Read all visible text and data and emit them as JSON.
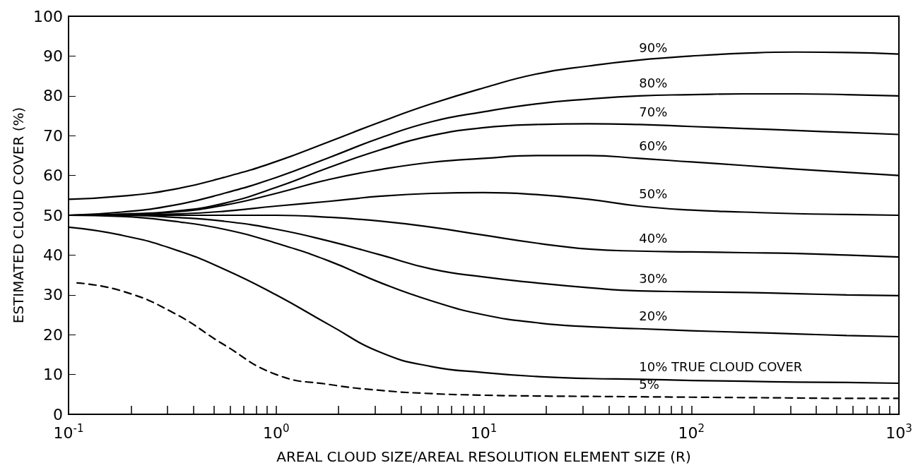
{
  "chart_data": {
    "type": "line",
    "xlabel": "AREAL CLOUD SIZE/AREAL RESOLUTION ELEMENT SIZE (R)",
    "ylabel": "ESTIMATED CLOUD COVER (%)",
    "log": "x",
    "grid": false,
    "legend": false,
    "marker": "none",
    "x": [
      0.1,
      0.18,
      0.32,
      0.56,
      1,
      1.8,
      3.2,
      5.6,
      10,
      18,
      32,
      56,
      100,
      180,
      320,
      560,
      1000
    ],
    "series": [
      {
        "name": "90%",
        "color": "#000000",
        "values": [
          54,
          54.8,
          56.5,
          59.5,
          63.5,
          68.5,
          73.5,
          78,
          82,
          85.5,
          87.5,
          89,
          90,
          90.7,
          91,
          90.9,
          90.5
        ]
      },
      {
        "name": "80%",
        "color": "#000000",
        "values": [
          50,
          50.8,
          52.5,
          55.5,
          59.5,
          64.5,
          69.5,
          73.5,
          76,
          78,
          79.2,
          80,
          80.3,
          80.5,
          80.5,
          80.3,
          80
        ]
      },
      {
        "name": "70%",
        "color": "#000000",
        "values": [
          50,
          50.3,
          51,
          53,
          57,
          62,
          66.5,
          70,
          72,
          72.8,
          73,
          72.8,
          72.3,
          71.8,
          71.3,
          70.8,
          70.3
        ]
      },
      {
        "name": "60%",
        "color": "#000000",
        "values": [
          50,
          50.2,
          50.8,
          52.5,
          55.5,
          59,
          61.5,
          63.3,
          64.3,
          65,
          65,
          64.3,
          63.4,
          62.5,
          61.6,
          60.8,
          60
        ]
      },
      {
        "name": "50%",
        "color": "#000000",
        "values": [
          50,
          50.1,
          50.3,
          51,
          52.3,
          53.5,
          54.8,
          55.5,
          55.7,
          55.2,
          54,
          52.3,
          51.3,
          50.8,
          50.4,
          50.2,
          50
        ]
      },
      {
        "name": "40%",
        "color": "#000000",
        "values": [
          50,
          50,
          50,
          50,
          50,
          49.5,
          48.5,
          47,
          45,
          43,
          41.5,
          41,
          40.8,
          40.6,
          40.4,
          40,
          39.5
        ]
      },
      {
        "name": "30%",
        "color": "#000000",
        "values": [
          50,
          50,
          49.5,
          48.5,
          46.5,
          43.5,
          40,
          36.5,
          34.5,
          33,
          31.8,
          31,
          30.8,
          30.6,
          30.3,
          30,
          29.8
        ]
      },
      {
        "name": "20%",
        "color": "#000000",
        "values": [
          50,
          49.7,
          48.5,
          46.5,
          43,
          38.5,
          33,
          28.5,
          25,
          23,
          22,
          21.5,
          21,
          20.6,
          20.2,
          19.8,
          19.5
        ]
      },
      {
        "name": "10% TRUE CLOUD COVER",
        "color": "#000000",
        "values": [
          47,
          45,
          41.5,
          36.5,
          30,
          22.5,
          15.5,
          12,
          10.5,
          9.5,
          9,
          8.8,
          8.5,
          8.3,
          8.1,
          8,
          7.8
        ]
      },
      {
        "name": "5%",
        "color": "#000000",
        "line_style": "dashed",
        "x": [
          0.11,
          0.18,
          0.32,
          0.56,
          1,
          1.8,
          3.2,
          5.6,
          10,
          18,
          32,
          56,
          100,
          180,
          320,
          560,
          1000
        ],
        "values": [
          33,
          31,
          25.5,
          17.5,
          10,
          7.5,
          6,
          5.2,
          4.8,
          4.6,
          4.5,
          4.4,
          4.3,
          4.2,
          4.1,
          4,
          4
        ]
      }
    ],
    "xlim": [
      0.1,
      1000
    ],
    "ylim": [
      0,
      100
    ],
    "yticks": [
      0,
      10,
      20,
      30,
      40,
      50,
      60,
      70,
      80,
      90,
      100
    ],
    "xticks": [
      {
        "value": 0.1,
        "label": "10$^{-1}$"
      },
      {
        "value": 0.2,
        "label": null
      },
      {
        "value": 0.3,
        "label": null
      },
      {
        "value": 0.4,
        "label": null
      },
      {
        "value": 0.5,
        "label": null
      },
      {
        "value": 0.6,
        "label": null
      },
      {
        "value": 0.7,
        "label": null
      },
      {
        "value": 0.8,
        "label": null
      },
      {
        "value": 0.9,
        "label": null
      },
      {
        "value": 1,
        "label": "10$^{0}$"
      },
      {
        "value": 2,
        "label": null
      },
      {
        "value": 3,
        "label": null
      },
      {
        "value": 4,
        "label": null
      },
      {
        "value": 5,
        "label": null
      },
      {
        "value": 6,
        "label": null
      },
      {
        "value": 7,
        "label": null
      },
      {
        "value": 8,
        "label": null
      },
      {
        "value": 9,
        "label": null
      },
      {
        "value": 10,
        "label": "10$^{1}$"
      },
      {
        "value": 20,
        "label": null
      },
      {
        "value": 30,
        "label": null
      },
      {
        "value": 40,
        "label": null
      },
      {
        "value": 50,
        "label": null
      },
      {
        "value": 60,
        "label": null
      },
      {
        "value": 70,
        "label": null
      },
      {
        "value": 80,
        "label": null
      },
      {
        "value": 90,
        "label": null
      },
      {
        "value": 100,
        "label": "10$^{2}$"
      },
      {
        "value": 200,
        "label": null
      },
      {
        "value": 300,
        "label": null
      },
      {
        "value": 400,
        "label": null
      },
      {
        "value": 500,
        "label": null
      },
      {
        "value": 600,
        "label": null
      },
      {
        "value": 700,
        "label": null
      },
      {
        "value": 800,
        "label": null
      },
      {
        "value": 900,
        "label": null
      },
      {
        "value": 1000,
        "label": "10$^{3}$"
      }
    ]
  }
}
